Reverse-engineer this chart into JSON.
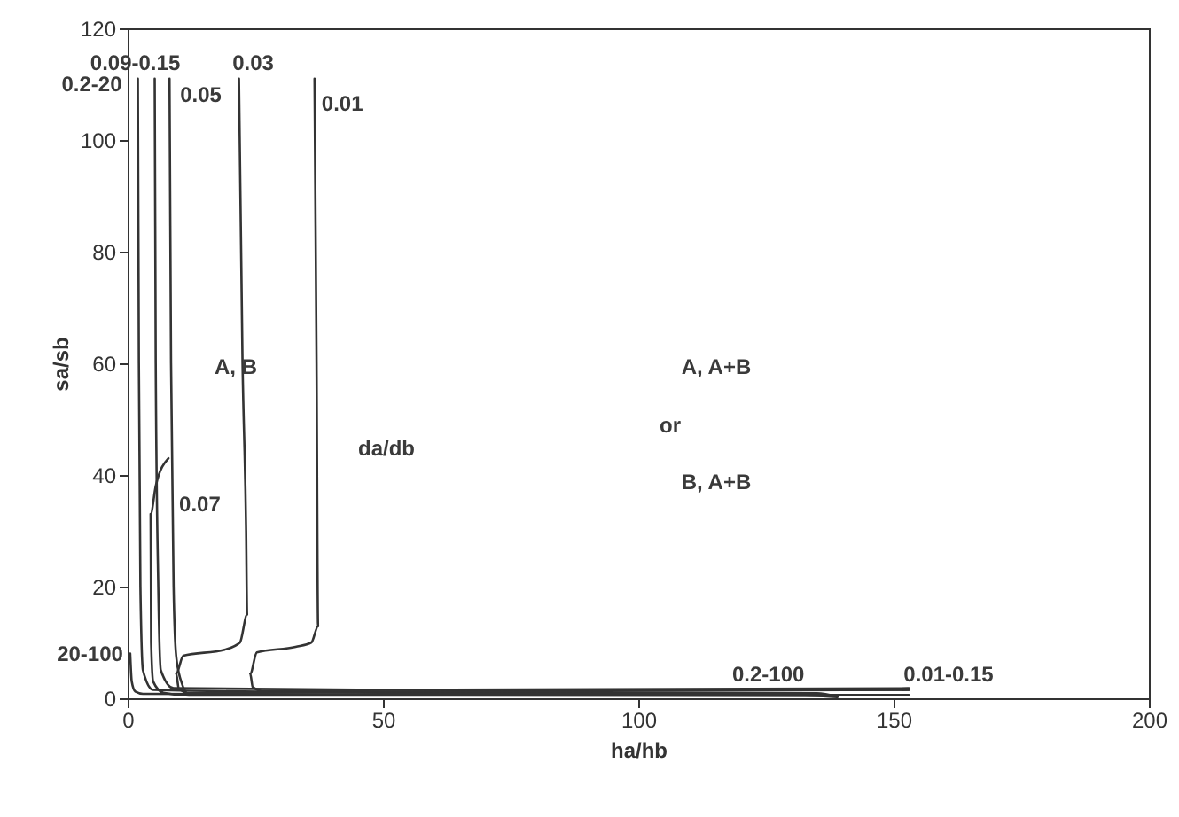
{
  "chart_data": {
    "type": "line",
    "xlabel": "ha/hb",
    "ylabel": "sa/sb",
    "xlim": [
      0,
      200
    ],
    "ylim": [
      0,
      120
    ],
    "xticks": [
      0,
      50,
      100,
      150,
      200
    ],
    "yticks": [
      0,
      20,
      40,
      60,
      80,
      100,
      120
    ],
    "grid": false,
    "marker": "none",
    "line_style": "solid",
    "series": [
      {
        "color": "#333333",
        "x": [
          0.5,
          0.8,
          1.5,
          3,
          50,
          130,
          139
        ],
        "values": [
          8,
          3,
          1.2,
          0.8,
          0.7,
          0.6,
          0.2
        ]
      },
      {
        "color": "#333333",
        "x": [
          2,
          2.2,
          2.5,
          3,
          5,
          50,
          135,
          139
        ],
        "values": [
          111,
          60,
          20,
          5,
          1.5,
          1,
          0.9,
          0.3
        ]
      },
      {
        "color": "#333333",
        "x": [
          5.3,
          5.5,
          6,
          6.5,
          9,
          50,
          153
        ],
        "values": [
          111,
          60,
          20,
          5,
          1.8,
          1.5,
          1.5
        ]
      },
      {
        "color": "#333333",
        "x": [
          8,
          5.5,
          4.5,
          4.6,
          5,
          7,
          12,
          50,
          139
        ],
        "values": [
          43,
          38,
          33,
          10,
          3,
          1,
          0.5,
          0.5,
          0.4
        ]
      },
      {
        "color": "#333333",
        "x": [
          8.2,
          8.5,
          9,
          9.5,
          10.5,
          12,
          50,
          153
        ],
        "values": [
          111,
          60,
          20,
          7.6,
          3,
          0.7,
          0.6,
          0.6
        ]
      },
      {
        "color": "#333333",
        "x": [
          21.8,
          22.5,
          23.2,
          23.4,
          22,
          19,
          10.9,
          9.5,
          10,
          12,
          50,
          153
        ],
        "values": [
          111,
          60,
          30,
          15,
          10,
          8.7,
          7.6,
          4.4,
          1.8,
          0.9,
          1.2,
          1.5
        ]
      },
      {
        "color": "#333333",
        "x": [
          36.6,
          37,
          37.3,
          36,
          32.9,
          25.3,
          24,
          24.5,
          26.5,
          50,
          153
        ],
        "values": [
          111,
          60,
          12.9,
          10,
          9.2,
          8.2,
          4.4,
          2,
          1.3,
          1.5,
          1.8
        ]
      }
    ],
    "annotations": [
      {
        "text": "0.2-20",
        "x": 2,
        "y": 111
      },
      {
        "text": "0.09-0.15",
        "x": 5.3,
        "y": 111
      },
      {
        "text": "0.05",
        "x": 8.2,
        "y": 111
      },
      {
        "text": "0.03",
        "x": 21.8,
        "y": 111
      },
      {
        "text": "0.01",
        "x": 36.6,
        "y": 111
      },
      {
        "text": "0.07",
        "x": 8,
        "y": 43
      },
      {
        "text": "20-100",
        "x": 0.5,
        "y": 8
      },
      {
        "text": "0.2-100",
        "x": 139,
        "y": 0.2
      },
      {
        "text": "0.01-0.15",
        "x": 153,
        "y": 1.5
      },
      "da/db",
      "A, B",
      "A, A+B",
      "or",
      "B, A+B"
    ]
  }
}
